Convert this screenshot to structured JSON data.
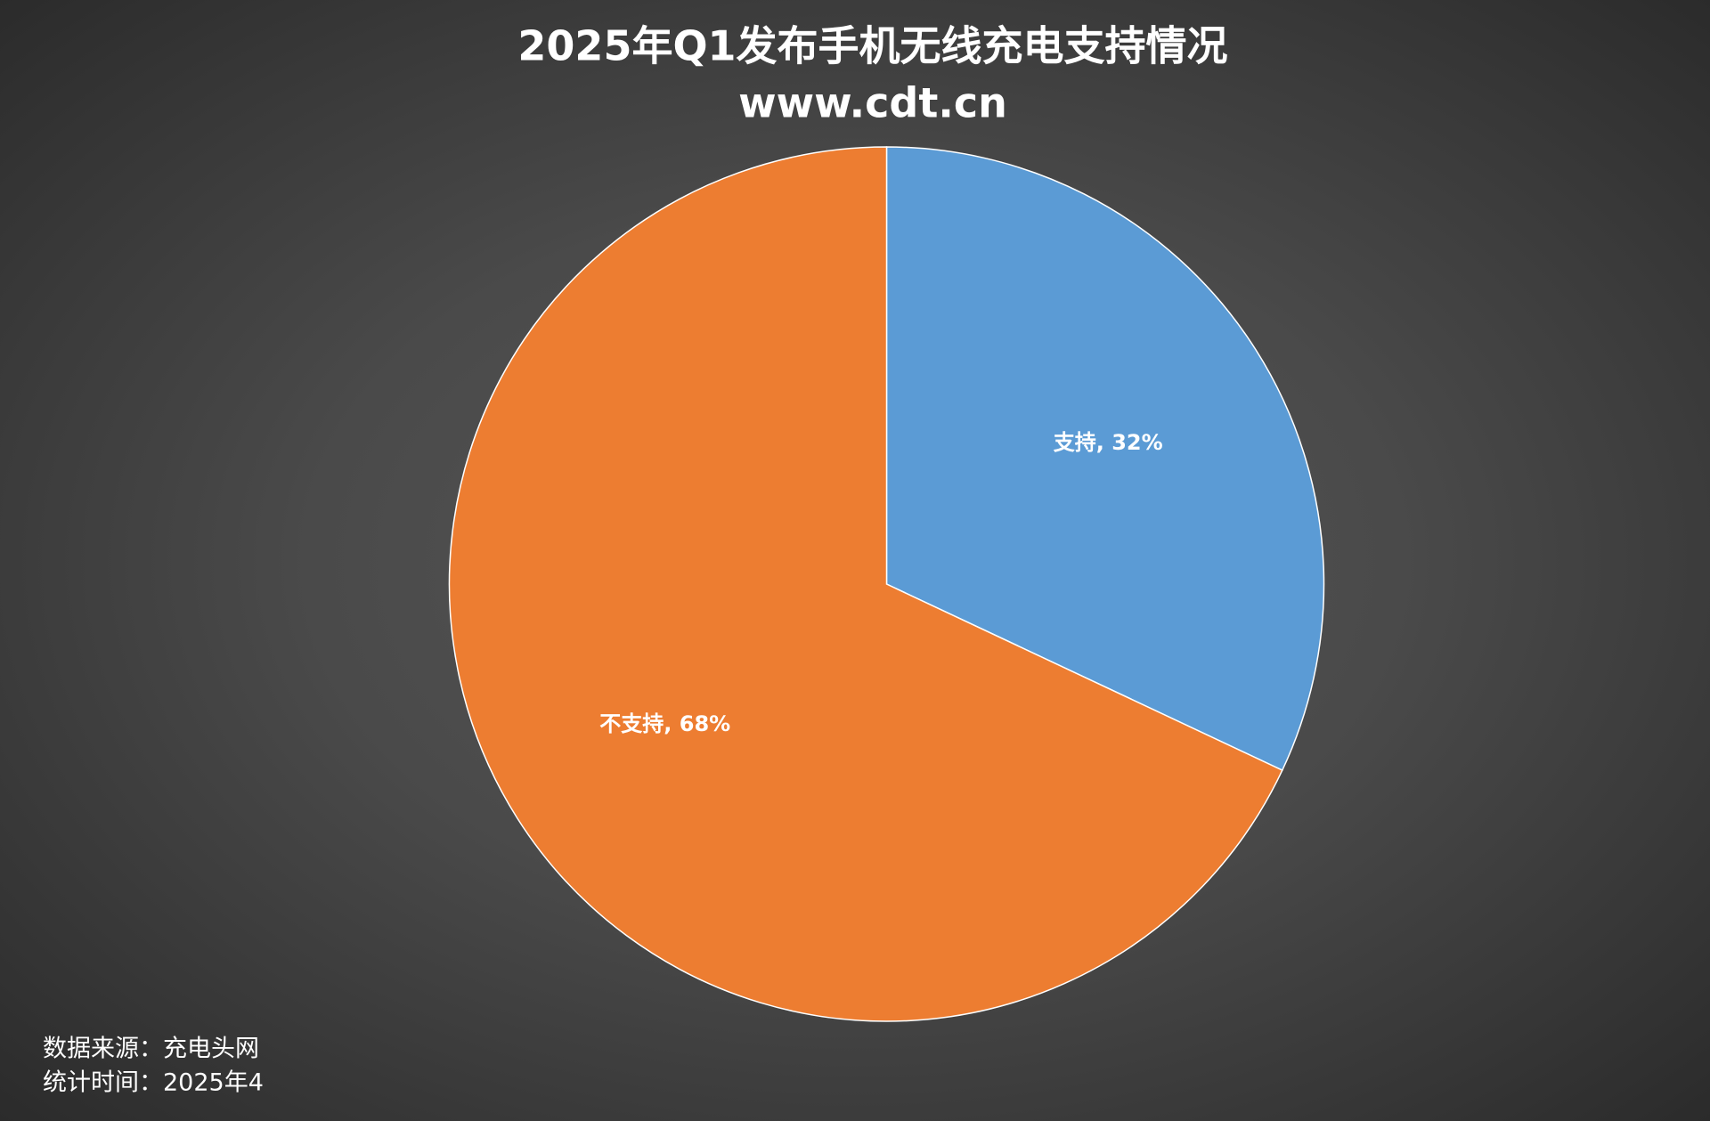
{
  "chart_data": {
    "type": "pie",
    "title": "2025年Q1发布手机无线充电支持情况",
    "subtitle": "www.cdt.cn",
    "values": [
      32,
      68
    ],
    "value_labels": [
      "支持, 32%",
      "不支持, 68%"
    ],
    "colors": [
      "#5b9bd5",
      "#ed7d31"
    ],
    "source": "数据来源：充电头网",
    "stat_time": "统计时间：2025年4"
  }
}
